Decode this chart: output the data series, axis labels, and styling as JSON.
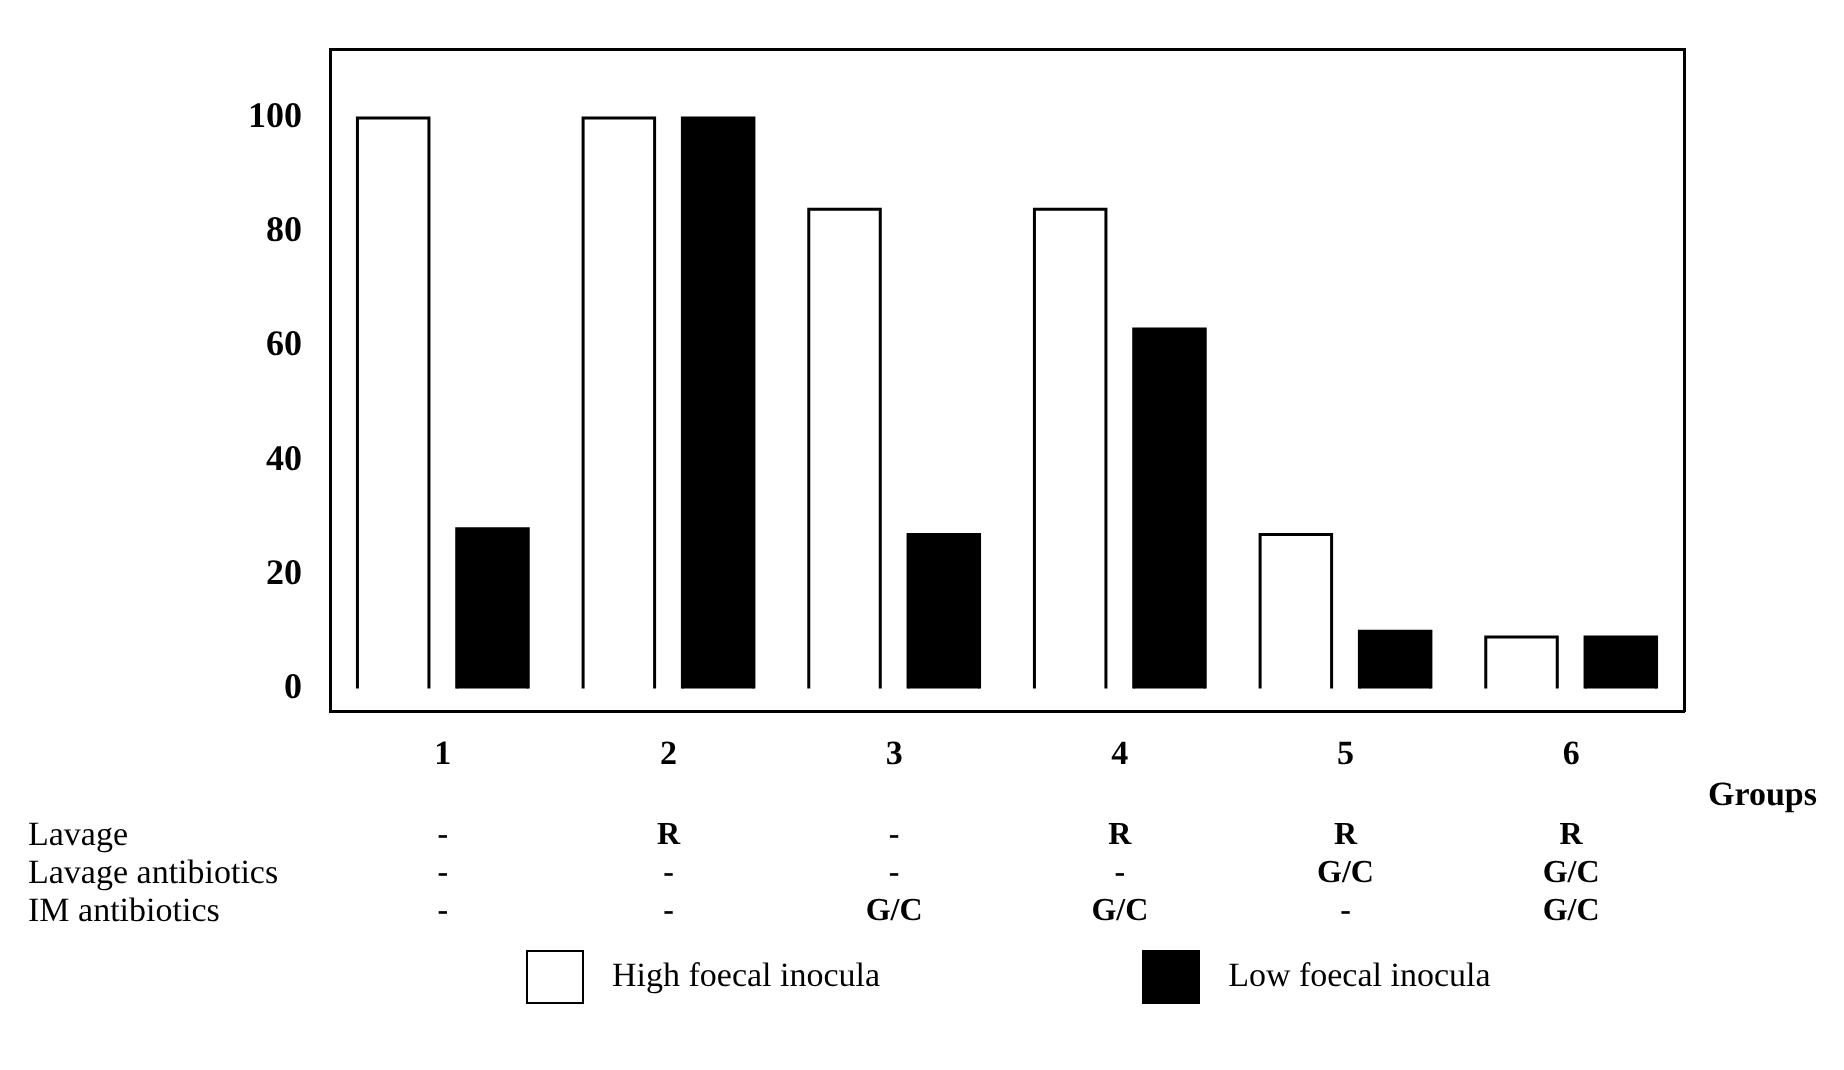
{
  "chart_data": {
    "type": "bar",
    "xlabel": "Groups",
    "categories": [
      "1",
      "2",
      "3",
      "4",
      "5",
      "6"
    ],
    "series": [
      {
        "name": "High foecal inocula",
        "color": "#ffffff",
        "values": [
          100,
          100,
          84,
          84,
          27,
          9
        ]
      },
      {
        "name": "Low foecal inocula",
        "color": "#000000",
        "values": [
          28,
          100,
          27,
          63,
          10,
          9
        ]
      }
    ],
    "ylim": [
      -4,
      112
    ],
    "yticks": [
      0,
      20,
      40,
      60,
      80,
      100
    ],
    "grid": false,
    "legend": "bottom",
    "annotations": [
      "Lavage",
      "-",
      "R",
      "-",
      "R",
      "R",
      "R",
      "Lavage antibiotics",
      "-",
      "-",
      "-",
      "-",
      "G/C",
      "G/C",
      "IM antibiotics",
      "-",
      "-",
      "G/C",
      "G/C",
      "-",
      "G/C"
    ]
  }
}
